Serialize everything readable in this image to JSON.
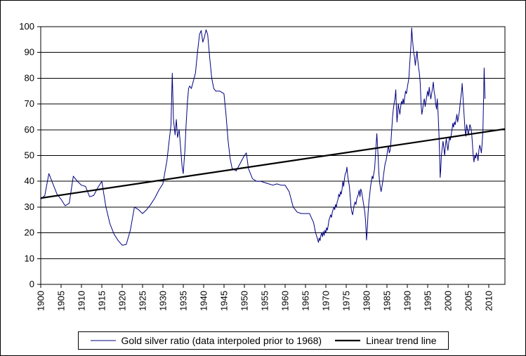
{
  "chart_data": {
    "type": "line",
    "title": "",
    "y_axis": {
      "min": 0,
      "max": 100,
      "step": 10
    },
    "x_axis": {
      "min": 1900,
      "max": 2014,
      "ticks": [
        1900,
        1905,
        1910,
        1915,
        1920,
        1925,
        1930,
        1935,
        1940,
        1945,
        1950,
        1955,
        1960,
        1965,
        1970,
        1975,
        1980,
        1985,
        1990,
        1995,
        2000,
        2005,
        2010
      ],
      "label_rotation": -90
    },
    "grid": "horizontal",
    "legend_position": "bottom",
    "colors": {
      "grid": "#000000",
      "axis": "#000000",
      "background": "#ffffff"
    },
    "series": [
      {
        "name": "Gold silver ratio (data interpoled prior to 1968)",
        "color": "#000080",
        "width": 1,
        "points": [
          [
            1900,
            33
          ],
          [
            1901,
            34.5
          ],
          [
            1902,
            43
          ],
          [
            1903,
            39
          ],
          [
            1904,
            35
          ],
          [
            1905,
            33
          ],
          [
            1906,
            30.5
          ],
          [
            1907,
            31.5
          ],
          [
            1908,
            42
          ],
          [
            1909,
            40
          ],
          [
            1910,
            38.5
          ],
          [
            1911,
            38
          ],
          [
            1912,
            34
          ],
          [
            1913,
            34.5
          ],
          [
            1914,
            37.5
          ],
          [
            1915,
            40
          ],
          [
            1916,
            30
          ],
          [
            1917,
            23.5
          ],
          [
            1918,
            19.5
          ],
          [
            1919,
            17
          ],
          [
            1920,
            15.2
          ],
          [
            1921,
            15.5
          ],
          [
            1922,
            21
          ],
          [
            1923,
            30
          ],
          [
            1924,
            29
          ],
          [
            1925,
            27.5
          ],
          [
            1926,
            29
          ],
          [
            1927,
            31
          ],
          [
            1928,
            33.5
          ],
          [
            1929,
            36.5
          ],
          [
            1930,
            39
          ],
          [
            1931,
            48
          ],
          [
            1931.5,
            55
          ],
          [
            1932,
            62
          ],
          [
            1932.3,
            82
          ],
          [
            1932.6,
            64
          ],
          [
            1933,
            58
          ],
          [
            1933.3,
            64
          ],
          [
            1933.6,
            57
          ],
          [
            1934,
            60
          ],
          [
            1934.4,
            52
          ],
          [
            1934.7,
            46
          ],
          [
            1935,
            43
          ],
          [
            1935.4,
            52
          ],
          [
            1935.7,
            62
          ],
          [
            1936,
            70
          ],
          [
            1936.3,
            76
          ],
          [
            1936.6,
            77
          ],
          [
            1937,
            76
          ],
          [
            1937.5,
            79
          ],
          [
            1938,
            82
          ],
          [
            1938.5,
            90
          ],
          [
            1939,
            97
          ],
          [
            1939.4,
            98.5
          ],
          [
            1939.8,
            94
          ],
          [
            1940.2,
            96
          ],
          [
            1940.6,
            98.8
          ],
          [
            1941,
            97
          ],
          [
            1941.5,
            88
          ],
          [
            1942,
            80
          ],
          [
            1942.5,
            76
          ],
          [
            1943,
            75
          ],
          [
            1944,
            75
          ],
          [
            1945,
            74
          ],
          [
            1945.5,
            66
          ],
          [
            1946,
            56
          ],
          [
            1946.5,
            49
          ],
          [
            1947,
            45
          ],
          [
            1948,
            44
          ],
          [
            1949,
            47
          ],
          [
            1950,
            50
          ],
          [
            1950.5,
            51
          ],
          [
            1951,
            45
          ],
          [
            1952,
            41
          ],
          [
            1953,
            40
          ],
          [
            1954,
            40
          ],
          [
            1955,
            39.5
          ],
          [
            1956,
            39
          ],
          [
            1957,
            38.5
          ],
          [
            1958,
            39
          ],
          [
            1959,
            38.5
          ],
          [
            1960,
            38.5
          ],
          [
            1961,
            36
          ],
          [
            1962,
            30
          ],
          [
            1963,
            28
          ],
          [
            1964,
            27.5
          ],
          [
            1965,
            27.5
          ],
          [
            1966,
            27.5
          ],
          [
            1967,
            24
          ],
          [
            1967.5,
            20
          ],
          [
            1968,
            17.5
          ],
          [
            1968.2,
            16.3
          ],
          [
            1968.4,
            18
          ],
          [
            1968.6,
            17
          ],
          [
            1968.8,
            19
          ],
          [
            1969,
            20
          ],
          [
            1969.2,
            18.5
          ],
          [
            1969.4,
            20.5
          ],
          [
            1969.6,
            19
          ],
          [
            1969.8,
            21
          ],
          [
            1970,
            20
          ],
          [
            1970.2,
            22
          ],
          [
            1970.4,
            21
          ],
          [
            1970.6,
            23
          ],
          [
            1970.8,
            25
          ],
          [
            1971,
            26
          ],
          [
            1971.2,
            27
          ],
          [
            1971.4,
            26
          ],
          [
            1971.6,
            28
          ],
          [
            1971.8,
            29
          ],
          [
            1972,
            30
          ],
          [
            1972.2,
            29
          ],
          [
            1972.4,
            31
          ],
          [
            1972.6,
            30
          ],
          [
            1972.8,
            32
          ],
          [
            1973,
            33
          ],
          [
            1973.2,
            35
          ],
          [
            1973.4,
            34
          ],
          [
            1973.6,
            36
          ],
          [
            1973.8,
            35
          ],
          [
            1974,
            37
          ],
          [
            1974.2,
            40
          ],
          [
            1974.4,
            38
          ],
          [
            1974.6,
            41
          ],
          [
            1974.8,
            43
          ],
          [
            1975,
            43.5
          ],
          [
            1975.2,
            45.5
          ],
          [
            1975.4,
            42
          ],
          [
            1975.6,
            40
          ],
          [
            1975.8,
            38
          ],
          [
            1976,
            34
          ],
          [
            1976.2,
            30
          ],
          [
            1976.4,
            28
          ],
          [
            1976.6,
            27
          ],
          [
            1976.8,
            29
          ],
          [
            1977,
            31
          ],
          [
            1977.2,
            32
          ],
          [
            1977.4,
            31
          ],
          [
            1977.6,
            33
          ],
          [
            1977.8,
            34
          ],
          [
            1978,
            35
          ],
          [
            1978.2,
            36.5
          ],
          [
            1978.4,
            34
          ],
          [
            1978.6,
            37
          ],
          [
            1978.8,
            36
          ],
          [
            1979,
            34
          ],
          [
            1979.2,
            32
          ],
          [
            1979.4,
            30
          ],
          [
            1979.6,
            28
          ],
          [
            1979.8,
            24
          ],
          [
            1980,
            17.2
          ],
          [
            1980.1,
            19
          ],
          [
            1980.25,
            23
          ],
          [
            1980.4,
            28
          ],
          [
            1980.6,
            32
          ],
          [
            1980.8,
            35
          ],
          [
            1981,
            38
          ],
          [
            1981.2,
            40
          ],
          [
            1981.4,
            42
          ],
          [
            1981.6,
            41
          ],
          [
            1981.8,
            43
          ],
          [
            1982,
            45
          ],
          [
            1982.2,
            50
          ],
          [
            1982.4,
            55
          ],
          [
            1982.55,
            58.5
          ],
          [
            1982.7,
            54
          ],
          [
            1982.85,
            50
          ],
          [
            1983,
            44
          ],
          [
            1983.2,
            40
          ],
          [
            1983.4,
            37.5
          ],
          [
            1983.6,
            36
          ],
          [
            1983.8,
            38
          ],
          [
            1984,
            40
          ],
          [
            1984.2,
            42.5
          ],
          [
            1984.4,
            45
          ],
          [
            1984.6,
            47
          ],
          [
            1984.8,
            48
          ],
          [
            1985,
            50
          ],
          [
            1985.2,
            52.5
          ],
          [
            1985.4,
            53.5
          ],
          [
            1985.6,
            51
          ],
          [
            1985.8,
            52
          ],
          [
            1986,
            55
          ],
          [
            1986.2,
            60
          ],
          [
            1986.4,
            65
          ],
          [
            1986.6,
            68
          ],
          [
            1986.8,
            70.5
          ],
          [
            1987,
            72
          ],
          [
            1987.2,
            75.5
          ],
          [
            1987.35,
            68
          ],
          [
            1987.5,
            63
          ],
          [
            1987.65,
            66
          ],
          [
            1987.8,
            70
          ],
          [
            1988,
            68
          ],
          [
            1988.2,
            66
          ],
          [
            1988.4,
            69
          ],
          [
            1988.6,
            71
          ],
          [
            1988.8,
            70
          ],
          [
            1989,
            72
          ],
          [
            1989.2,
            70
          ],
          [
            1989.4,
            73
          ],
          [
            1989.6,
            75
          ],
          [
            1989.8,
            74
          ],
          [
            1990,
            76
          ],
          [
            1990.2,
            78
          ],
          [
            1990.4,
            80
          ],
          [
            1990.6,
            85
          ],
          [
            1990.8,
            90
          ],
          [
            1991,
            95
          ],
          [
            1991.1,
            99.5
          ],
          [
            1991.25,
            96
          ],
          [
            1991.4,
            93
          ],
          [
            1991.6,
            90
          ],
          [
            1991.8,
            88
          ],
          [
            1992,
            85
          ],
          [
            1992.2,
            88
          ],
          [
            1992.4,
            90.5
          ],
          [
            1992.6,
            87
          ],
          [
            1992.8,
            84
          ],
          [
            1993,
            82
          ],
          [
            1993.2,
            78
          ],
          [
            1993.4,
            70
          ],
          [
            1993.6,
            66
          ],
          [
            1993.8,
            68
          ],
          [
            1994,
            70.5
          ],
          [
            1994.2,
            72
          ],
          [
            1994.4,
            69
          ],
          [
            1994.6,
            71
          ],
          [
            1994.8,
            73
          ],
          [
            1995,
            75
          ],
          [
            1995.2,
            73
          ],
          [
            1995.4,
            76.5
          ],
          [
            1995.6,
            74
          ],
          [
            1995.8,
            72
          ],
          [
            1996,
            74
          ],
          [
            1996.2,
            76
          ],
          [
            1996.4,
            78.5
          ],
          [
            1996.6,
            75
          ],
          [
            1996.8,
            73
          ],
          [
            1997,
            70
          ],
          [
            1997.2,
            68
          ],
          [
            1997.4,
            72
          ],
          [
            1997.6,
            66
          ],
          [
            1997.8,
            58
          ],
          [
            1998,
            48
          ],
          [
            1998.1,
            41.5
          ],
          [
            1998.25,
            45
          ],
          [
            1998.4,
            50
          ],
          [
            1998.6,
            53
          ],
          [
            1998.8,
            55.5
          ],
          [
            1999,
            53
          ],
          [
            1999.2,
            50
          ],
          [
            1999.4,
            54
          ],
          [
            1999.6,
            56.5
          ],
          [
            1999.8,
            54
          ],
          [
            2000,
            52
          ],
          [
            2000.2,
            55
          ],
          [
            2000.4,
            57
          ],
          [
            2000.6,
            56
          ],
          [
            2000.8,
            58
          ],
          [
            2001,
            60
          ],
          [
            2001.2,
            62.5
          ],
          [
            2001.4,
            61
          ],
          [
            2001.6,
            63
          ],
          [
            2001.8,
            62
          ],
          [
            2002,
            64
          ],
          [
            2002.2,
            66
          ],
          [
            2002.4,
            63
          ],
          [
            2002.6,
            65
          ],
          [
            2002.8,
            67
          ],
          [
            2003,
            70
          ],
          [
            2003.2,
            73
          ],
          [
            2003.4,
            75.5
          ],
          [
            2003.5,
            78
          ],
          [
            2003.65,
            74
          ],
          [
            2003.8,
            70
          ],
          [
            2004,
            65
          ],
          [
            2004.2,
            60
          ],
          [
            2004.4,
            57.5
          ],
          [
            2004.6,
            62
          ],
          [
            2004.8,
            60
          ],
          [
            2005,
            58
          ],
          [
            2005.2,
            60
          ],
          [
            2005.4,
            62
          ],
          [
            2005.6,
            61
          ],
          [
            2005.8,
            59
          ],
          [
            2006,
            55
          ],
          [
            2006.2,
            50
          ],
          [
            2006.4,
            47.5
          ],
          [
            2006.6,
            50
          ],
          [
            2006.8,
            49
          ],
          [
            2007,
            51
          ],
          [
            2007.2,
            50
          ],
          [
            2007.4,
            48
          ],
          [
            2007.6,
            52
          ],
          [
            2007.8,
            54
          ],
          [
            2008,
            53
          ],
          [
            2008.2,
            51
          ],
          [
            2008.4,
            54.5
          ],
          [
            2008.6,
            60
          ],
          [
            2008.8,
            75
          ],
          [
            2008.9,
            84
          ],
          [
            2009,
            78
          ],
          [
            2009.1,
            72
          ]
        ]
      },
      {
        "name": "Linear trend line",
        "color": "#000000",
        "width": 2.2,
        "points": [
          [
            1900,
            33.5
          ],
          [
            2014,
            60.3
          ]
        ]
      }
    ]
  }
}
